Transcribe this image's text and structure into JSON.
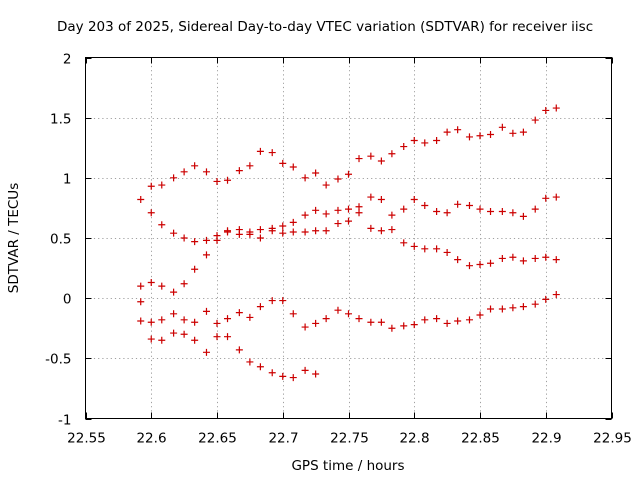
{
  "chart_data": {
    "type": "scatter",
    "title": "Day 203 of 2025, Sidereal Day-to-day VTEC variation (SDTVAR) for receiver iisc",
    "xlabel": "GPS time / hours",
    "ylabel": "SDTVAR / TECUs",
    "xlim": [
      22.55,
      22.95
    ],
    "ylim": [
      -1,
      2
    ],
    "xticks": [
      "22.55",
      "22.6",
      "22.65",
      "22.7",
      "22.75",
      "22.8",
      "22.85",
      "22.9",
      "22.95"
    ],
    "yticks": [
      "-1",
      "-0.5",
      "0",
      "0.5",
      "1",
      "1.5",
      "2"
    ],
    "xtick_values": [
      22.55,
      22.6,
      22.65,
      22.7,
      22.75,
      22.8,
      22.85,
      22.9,
      22.95
    ],
    "ytick_values": [
      -1,
      -0.5,
      0,
      0.5,
      1,
      1.5,
      2
    ],
    "grid": true,
    "marker": "+",
    "marker_color": "#cc0000",
    "points": [
      [
        22.592,
        0.82
      ],
      [
        22.6,
        0.93
      ],
      [
        22.608,
        0.94
      ],
      [
        22.617,
        1.0
      ],
      [
        22.625,
        1.05
      ],
      [
        22.633,
        1.1
      ],
      [
        22.642,
        1.05
      ],
      [
        22.65,
        0.97
      ],
      [
        22.658,
        0.98
      ],
      [
        22.667,
        1.06
      ],
      [
        22.675,
        1.1
      ],
      [
        22.683,
        1.22
      ],
      [
        22.692,
        1.21
      ],
      [
        22.7,
        1.12
      ],
      [
        22.708,
        1.09
      ],
      [
        22.717,
        1.0
      ],
      [
        22.725,
        1.04
      ],
      [
        22.733,
        0.94
      ],
      [
        22.742,
        0.99
      ],
      [
        22.75,
        1.03
      ],
      [
        22.758,
        1.16
      ],
      [
        22.767,
        1.18
      ],
      [
        22.775,
        1.14
      ],
      [
        22.783,
        1.2
      ],
      [
        22.792,
        1.26
      ],
      [
        22.8,
        1.31
      ],
      [
        22.808,
        1.29
      ],
      [
        22.817,
        1.31
      ],
      [
        22.825,
        1.38
      ],
      [
        22.833,
        1.4
      ],
      [
        22.842,
        1.34
      ],
      [
        22.85,
        1.35
      ],
      [
        22.858,
        1.36
      ],
      [
        22.867,
        1.42
      ],
      [
        22.875,
        1.37
      ],
      [
        22.883,
        1.38
      ],
      [
        22.892,
        1.48
      ],
      [
        22.9,
        1.56
      ],
      [
        22.908,
        1.58
      ],
      [
        22.6,
        0.71
      ],
      [
        22.608,
        0.61
      ],
      [
        22.617,
        0.54
      ],
      [
        22.625,
        0.5
      ],
      [
        22.633,
        0.47
      ],
      [
        22.642,
        0.48
      ],
      [
        22.65,
        0.52
      ],
      [
        22.658,
        0.56
      ],
      [
        22.667,
        0.57
      ],
      [
        22.675,
        0.55
      ],
      [
        22.683,
        0.5
      ],
      [
        22.692,
        0.56
      ],
      [
        22.7,
        0.54
      ],
      [
        22.708,
        0.55
      ],
      [
        22.717,
        0.55
      ],
      [
        22.725,
        0.56
      ],
      [
        22.733,
        0.56
      ],
      [
        22.742,
        0.62
      ],
      [
        22.75,
        0.64
      ],
      [
        22.758,
        0.71
      ],
      [
        22.767,
        0.58
      ],
      [
        22.775,
        0.56
      ],
      [
        22.783,
        0.57
      ],
      [
        22.792,
        0.46
      ],
      [
        22.8,
        0.43
      ],
      [
        22.808,
        0.41
      ],
      [
        22.817,
        0.41
      ],
      [
        22.825,
        0.38
      ],
      [
        22.833,
        0.32
      ],
      [
        22.842,
        0.27
      ],
      [
        22.85,
        0.28
      ],
      [
        22.858,
        0.29
      ],
      [
        22.867,
        0.33
      ],
      [
        22.875,
        0.34
      ],
      [
        22.883,
        0.31
      ],
      [
        22.892,
        0.33
      ],
      [
        22.9,
        0.34
      ],
      [
        22.908,
        0.32
      ],
      [
        22.592,
        0.1
      ],
      [
        22.6,
        0.13
      ],
      [
        22.608,
        0.1
      ],
      [
        22.617,
        0.05
      ],
      [
        22.625,
        0.12
      ],
      [
        22.633,
        0.24
      ],
      [
        22.642,
        0.36
      ],
      [
        22.65,
        0.48
      ],
      [
        22.658,
        0.55
      ],
      [
        22.667,
        0.53
      ],
      [
        22.675,
        0.53
      ],
      [
        22.683,
        0.57
      ],
      [
        22.692,
        0.58
      ],
      [
        22.7,
        0.6
      ],
      [
        22.708,
        0.63
      ],
      [
        22.717,
        0.69
      ],
      [
        22.725,
        0.73
      ],
      [
        22.733,
        0.7
      ],
      [
        22.742,
        0.73
      ],
      [
        22.75,
        0.74
      ],
      [
        22.758,
        0.76
      ],
      [
        22.767,
        0.84
      ],
      [
        22.775,
        0.82
      ],
      [
        22.783,
        0.69
      ],
      [
        22.792,
        0.74
      ],
      [
        22.8,
        0.82
      ],
      [
        22.808,
        0.77
      ],
      [
        22.817,
        0.72
      ],
      [
        22.825,
        0.71
      ],
      [
        22.833,
        0.78
      ],
      [
        22.842,
        0.77
      ],
      [
        22.85,
        0.74
      ],
      [
        22.858,
        0.72
      ],
      [
        22.867,
        0.72
      ],
      [
        22.875,
        0.71
      ],
      [
        22.883,
        0.68
      ],
      [
        22.892,
        0.74
      ],
      [
        22.9,
        0.83
      ],
      [
        22.908,
        0.84
      ],
      [
        22.592,
        -0.03
      ],
      [
        22.6,
        -0.34
      ],
      [
        22.608,
        -0.35
      ],
      [
        22.617,
        -0.29
      ],
      [
        22.625,
        -0.3
      ],
      [
        22.633,
        -0.35
      ],
      [
        22.642,
        -0.45
      ],
      [
        22.65,
        -0.32
      ],
      [
        22.658,
        -0.32
      ],
      [
        22.667,
        -0.43
      ],
      [
        22.675,
        -0.53
      ],
      [
        22.683,
        -0.57
      ],
      [
        22.692,
        -0.62
      ],
      [
        22.7,
        -0.65
      ],
      [
        22.708,
        -0.66
      ],
      [
        22.717,
        -0.6
      ],
      [
        22.725,
        -0.63
      ],
      [
        22.592,
        -0.19
      ],
      [
        22.6,
        -0.2
      ],
      [
        22.608,
        -0.18
      ],
      [
        22.617,
        -0.13
      ],
      [
        22.625,
        -0.18
      ],
      [
        22.633,
        -0.2
      ],
      [
        22.642,
        -0.11
      ],
      [
        22.65,
        -0.21
      ],
      [
        22.658,
        -0.17
      ],
      [
        22.667,
        -0.12
      ],
      [
        22.675,
        -0.16
      ],
      [
        22.683,
        -0.07
      ],
      [
        22.692,
        -0.02
      ],
      [
        22.7,
        -0.02
      ],
      [
        22.708,
        -0.13
      ],
      [
        22.717,
        -0.24
      ],
      [
        22.725,
        -0.21
      ],
      [
        22.733,
        -0.17
      ],
      [
        22.742,
        -0.1
      ],
      [
        22.75,
        -0.13
      ],
      [
        22.758,
        -0.17
      ],
      [
        22.767,
        -0.2
      ],
      [
        22.775,
        -0.2
      ],
      [
        22.783,
        -0.25
      ],
      [
        22.792,
        -0.23
      ],
      [
        22.8,
        -0.22
      ],
      [
        22.808,
        -0.18
      ],
      [
        22.817,
        -0.17
      ],
      [
        22.825,
        -0.21
      ],
      [
        22.833,
        -0.19
      ],
      [
        22.842,
        -0.18
      ],
      [
        22.85,
        -0.14
      ],
      [
        22.858,
        -0.09
      ],
      [
        22.867,
        -0.09
      ],
      [
        22.875,
        -0.08
      ],
      [
        22.883,
        -0.07
      ],
      [
        22.892,
        -0.05
      ],
      [
        22.9,
        -0.01
      ],
      [
        22.908,
        0.03
      ]
    ]
  }
}
